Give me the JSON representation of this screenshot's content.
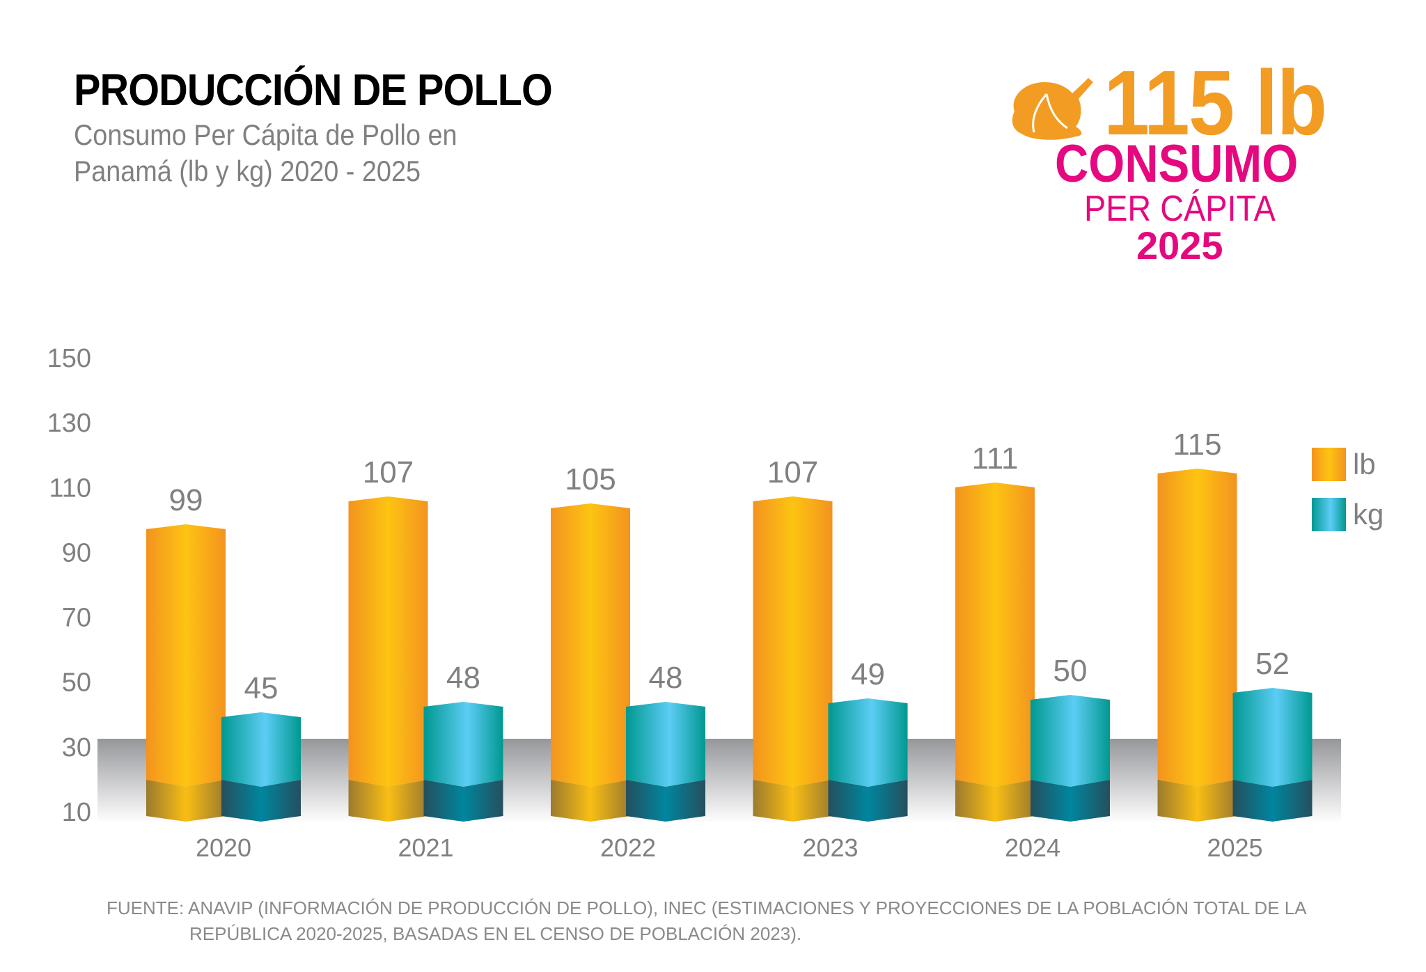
{
  "header": {
    "title": "PRODUCCIÓN DE POLLO",
    "subtitle_line1": "Consumo Per Cápita de Pollo en",
    "subtitle_line2": "Panamá (lb y kg) 2020 - 2025"
  },
  "highlight": {
    "icon": "roast-chicken-icon",
    "value": "115 lb",
    "label1": "CONSUMO",
    "label2": "PER CÁPITA",
    "year": "2025"
  },
  "chart_data": {
    "type": "bar",
    "categories": [
      "2020",
      "2021",
      "2022",
      "2023",
      "2024",
      "2025"
    ],
    "series": [
      {
        "name": "lb",
        "values": [
          99,
          107,
          105,
          107,
          111,
          115
        ],
        "color": "#f7a51c"
      },
      {
        "name": "kg",
        "values": [
          45,
          48,
          48,
          49,
          50,
          52
        ],
        "color": "#1ab3c4"
      }
    ],
    "yticks": [
      "150",
      "130",
      "110",
      "90",
      "70",
      "50",
      "30",
      "10"
    ],
    "ylim": [
      10,
      150
    ],
    "legend": "right",
    "grid": false,
    "style": "3d-cylinder-bars"
  },
  "footer": {
    "line1": "FUENTE:  ANAVIP (INFORMACIÓN DE PRODUCCIÓN DE POLLO), INEC (ESTIMACIONES Y PROYECCIONES DE LA POBLACIÓN TOTAL DE LA",
    "line2": "REPÚBLICA 2020-2025, BASADAS EN EL CENSO DE POBLACIÓN 2023)."
  }
}
